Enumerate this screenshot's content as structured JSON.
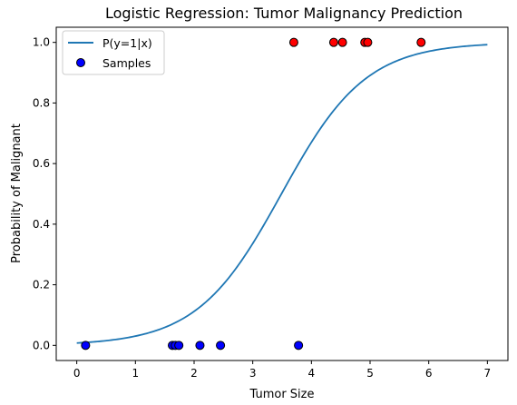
{
  "chart_data": {
    "type": "scatter",
    "title": "Logistic Regression: Tumor Malignancy Prediction",
    "xlabel": "Tumor Size",
    "ylabel": "Probability of Malignant",
    "xlim": [
      -0.35,
      7.35
    ],
    "ylim": [
      -0.05,
      1.05
    ],
    "xticks": [
      0,
      1,
      2,
      3,
      4,
      5,
      6,
      7
    ],
    "yticks": [
      0.0,
      0.2,
      0.4,
      0.6,
      0.8,
      1.0
    ],
    "xtick_labels": [
      "0",
      "1",
      "2",
      "3",
      "4",
      "5",
      "6",
      "7"
    ],
    "ytick_labels": [
      "0.0",
      "0.2",
      "0.4",
      "0.6",
      "0.8",
      "1.0"
    ],
    "grid": false,
    "legend_position": "top-left",
    "legend": [
      {
        "label": "P(y=1|x)",
        "kind": "line",
        "color": "#1f77b4"
      },
      {
        "label": "Samples",
        "kind": "marker",
        "color": "#0000ff"
      }
    ],
    "curve": {
      "name": "P(y=1|x)",
      "color": "#1f77b4",
      "x_start": 0.0,
      "x_end": 7.0,
      "intercept": -4.85,
      "slope": 1.39
    },
    "samples": [
      {
        "x": 0.15,
        "y": 0,
        "color": "#0000ff"
      },
      {
        "x": 1.63,
        "y": 0,
        "color": "#0000ff"
      },
      {
        "x": 1.68,
        "y": 0,
        "color": "#0000ff"
      },
      {
        "x": 1.74,
        "y": 0,
        "color": "#0000ff"
      },
      {
        "x": 2.1,
        "y": 0,
        "color": "#0000ff"
      },
      {
        "x": 2.45,
        "y": 0,
        "color": "#0000ff"
      },
      {
        "x": 3.78,
        "y": 0,
        "color": "#0000ff"
      },
      {
        "x": 3.7,
        "y": 1,
        "color": "#ff0000"
      },
      {
        "x": 4.38,
        "y": 1,
        "color": "#ff0000"
      },
      {
        "x": 4.53,
        "y": 1,
        "color": "#ff0000"
      },
      {
        "x": 4.91,
        "y": 1,
        "color": "#ff0000"
      },
      {
        "x": 4.96,
        "y": 1,
        "color": "#ff0000"
      },
      {
        "x": 5.87,
        "y": 1,
        "color": "#ff0000"
      }
    ]
  }
}
